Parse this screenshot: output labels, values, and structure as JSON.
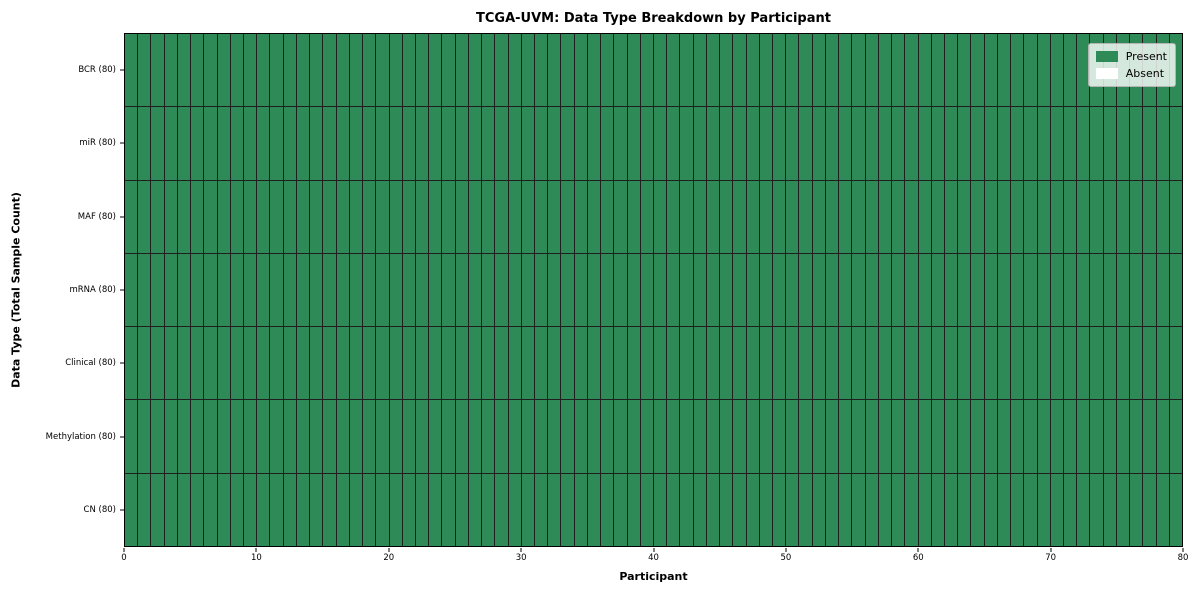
{
  "chart_data": {
    "type": "heatmap",
    "title": "TCGA-UVM: Data Type Breakdown by Participant",
    "xlabel": "Participant",
    "ylabel": "Data Type (Total Sample Count)",
    "n_participants": 80,
    "xlim": [
      0,
      80
    ],
    "x_ticks": [
      0,
      10,
      20,
      30,
      40,
      50,
      60,
      70,
      80
    ],
    "rows": [
      {
        "label": "BCR (80)",
        "present_count": 80,
        "absent_count": 0
      },
      {
        "label": "miR (80)",
        "present_count": 80,
        "absent_count": 0
      },
      {
        "label": "MAF (80)",
        "present_count": 80,
        "absent_count": 0
      },
      {
        "label": "mRNA (80)",
        "present_count": 80,
        "absent_count": 0
      },
      {
        "label": "Clinical (80)",
        "present_count": 80,
        "absent_count": 0
      },
      {
        "label": "Methylation (80)",
        "present_count": 80,
        "absent_count": 0
      },
      {
        "label": "CN (80)",
        "present_count": 80,
        "absent_count": 0
      }
    ],
    "legend": {
      "position": "upper right",
      "items": [
        {
          "label": "Present",
          "color": "#2e8b57"
        },
        {
          "label": "Absent",
          "color": "#ffffff"
        }
      ]
    },
    "colors": {
      "present": "#2e8b57",
      "absent": "#ffffff",
      "cell_edge": "#1f1f1f",
      "axis": "#000000",
      "background": "#ffffff"
    },
    "grid": false
  }
}
